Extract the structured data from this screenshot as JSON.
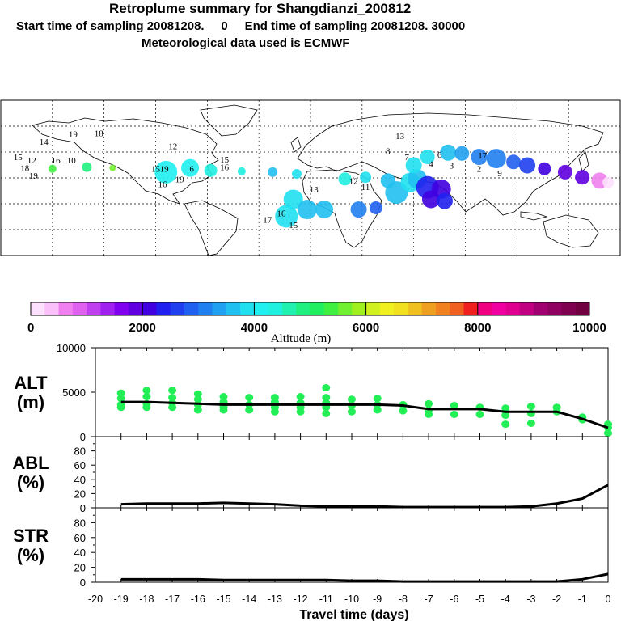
{
  "header": {
    "title": "Retroplume summary for Shangdianzi_200812",
    "sampling": "Start time of sampling 20081208.     0     End time of sampling 20081208. 30000",
    "met": "Meteorological data used is ECMWF"
  },
  "colors": {
    "scale": [
      "#fde0fd",
      "#f9c0f9",
      "#f080f0",
      "#e060f0",
      "#c040f0",
      "#a020f0",
      "#8000f0",
      "#6000e0",
      "#4000e0",
      "#2020f0",
      "#2040f0",
      "#2060f0",
      "#2080f0",
      "#20a0f0",
      "#20c0f0",
      "#20e0f0",
      "#20f0f0",
      "#20f0e0",
      "#20f0b0",
      "#20f080",
      "#20f060",
      "#40f040",
      "#70f030",
      "#a0f020",
      "#d0f020",
      "#f0f020",
      "#f0e020",
      "#f0c020",
      "#f0a020",
      "#f08020",
      "#f06020",
      "#f02020",
      "#f00080",
      "#f000a0",
      "#e00090",
      "#c00080",
      "#a00070",
      "#900060",
      "#800050",
      "#700040"
    ],
    "alt_dots": "#22ee55",
    "line": "#000000"
  },
  "map": {
    "labels": [
      {
        "t": "19",
        "lon": -138,
        "lat": 67
      },
      {
        "t": "18",
        "lon": -123,
        "lat": 68
      },
      {
        "t": "14",
        "lon": -155,
        "lat": 58
      },
      {
        "t": "12",
        "lon": -80,
        "lat": 53
      },
      {
        "t": "8",
        "lon": 45,
        "lat": 47
      },
      {
        "t": "13",
        "lon": 52,
        "lat": 65
      },
      {
        "t": "17",
        "lon": 100,
        "lat": 42
      },
      {
        "t": "15",
        "lon": -170,
        "lat": 40
      },
      {
        "t": "12",
        "lon": -162,
        "lat": 36
      },
      {
        "t": "16",
        "lon": -148,
        "lat": 36
      },
      {
        "t": "10",
        "lon": -139,
        "lat": 36
      },
      {
        "t": "18",
        "lon": -166,
        "lat": 27
      },
      {
        "t": "19",
        "lon": -161,
        "lat": 18
      },
      {
        "t": "15",
        "lon": -50,
        "lat": 37
      },
      {
        "t": "16",
        "lon": -50,
        "lat": 28
      },
      {
        "t": "15",
        "lon": -90,
        "lat": 26
      },
      {
        "t": "19",
        "lon": -85,
        "lat": 26
      },
      {
        "t": "6",
        "lon": -69,
        "lat": 26
      },
      {
        "t": "16",
        "lon": -86,
        "lat": 8
      },
      {
        "t": "19",
        "lon": -76,
        "lat": 14
      },
      {
        "t": "7",
        "lon": 56,
        "lat": 40
      },
      {
        "t": "6",
        "lon": 75,
        "lat": 43
      },
      {
        "t": "4",
        "lon": 70,
        "lat": 32
      },
      {
        "t": "3",
        "lon": 82,
        "lat": 30
      },
      {
        "t": "2",
        "lon": 98,
        "lat": 26
      },
      {
        "t": "9",
        "lon": 110,
        "lat": 21
      },
      {
        "t": "12",
        "lon": 25,
        "lat": 12
      },
      {
        "t": "11",
        "lon": 32,
        "lat": 5
      },
      {
        "t": "13",
        "lon": 2,
        "lat": 2
      },
      {
        "t": "16",
        "lon": -17,
        "lat": -26
      },
      {
        "t": "17",
        "lon": -25,
        "lat": -34
      },
      {
        "t": "15",
        "lon": -10,
        "lat": -40
      }
    ],
    "puffs": [
      {
        "lon": -84,
        "lat": 22,
        "r": 14,
        "c": "#20f0f0"
      },
      {
        "lon": -70,
        "lat": 27,
        "r": 11,
        "c": "#20f0f0"
      },
      {
        "lon": -58,
        "lat": 24,
        "r": 8,
        "c": "#20f0e0"
      },
      {
        "lon": -10,
        "lat": -10,
        "r": 12,
        "c": "#20e0f0"
      },
      {
        "lon": -14,
        "lat": -30,
        "r": 14,
        "c": "#20e0f0"
      },
      {
        "lon": -2,
        "lat": -22,
        "r": 12,
        "c": "#20c0f0"
      },
      {
        "lon": 8,
        "lat": -22,
        "r": 11,
        "c": "#20c0f0"
      },
      {
        "lon": 28,
        "lat": -22,
        "r": 10,
        "c": "#2080f0"
      },
      {
        "lon": 38,
        "lat": -20,
        "r": 8,
        "c": "#2060f0"
      },
      {
        "lon": 50,
        "lat": -2,
        "r": 14,
        "c": "#20c0f0"
      },
      {
        "lon": 58,
        "lat": 10,
        "r": 12,
        "c": "#20e0f0"
      },
      {
        "lon": 62,
        "lat": 14,
        "r": 12,
        "c": "#20c0f0"
      },
      {
        "lon": 68,
        "lat": 4,
        "r": 14,
        "c": "#2020f0"
      },
      {
        "lon": 76,
        "lat": 2,
        "r": 12,
        "c": "#4000e0"
      },
      {
        "lon": 70,
        "lat": -10,
        "r": 11,
        "c": "#4000e0"
      },
      {
        "lon": 78,
        "lat": -12,
        "r": 10,
        "c": "#2020f0"
      },
      {
        "lon": 60,
        "lat": 30,
        "r": 10,
        "c": "#20e0f0"
      },
      {
        "lon": 68,
        "lat": 40,
        "r": 9,
        "c": "#20e0f0"
      },
      {
        "lon": 80,
        "lat": 45,
        "r": 10,
        "c": "#20c0f0"
      },
      {
        "lon": 88,
        "lat": 44,
        "r": 9,
        "c": "#20a0f0"
      },
      {
        "lon": 98,
        "lat": 40,
        "r": 10,
        "c": "#2080f0"
      },
      {
        "lon": 108,
        "lat": 38,
        "r": 12,
        "c": "#2080f0"
      },
      {
        "lon": 118,
        "lat": 34,
        "r": 9,
        "c": "#2060f0"
      },
      {
        "lon": 126,
        "lat": 30,
        "r": 10,
        "c": "#2040f0"
      },
      {
        "lon": 136,
        "lat": 26,
        "r": 8,
        "c": "#4000e0"
      },
      {
        "lon": 148,
        "lat": 22,
        "r": 9,
        "c": "#6000e0"
      },
      {
        "lon": 158,
        "lat": 16,
        "r": 9,
        "c": "#6000e0"
      },
      {
        "lon": 168,
        "lat": 12,
        "r": 10,
        "c": "#f080f0"
      },
      {
        "lon": 173,
        "lat": 10,
        "r": 7,
        "c": "#fde0fd"
      },
      {
        "lon": -40,
        "lat": 23,
        "r": 5,
        "c": "#20f0e0"
      },
      {
        "lon": -22,
        "lat": 22,
        "r": 6,
        "c": "#20c0f0"
      },
      {
        "lon": -8,
        "lat": 20,
        "r": 6,
        "c": "#20e0f0"
      },
      {
        "lon": 20,
        "lat": 14,
        "r": 8,
        "c": "#20f0e0"
      },
      {
        "lon": 32,
        "lat": 16,
        "r": 7,
        "c": "#20e0f0"
      },
      {
        "lon": 45,
        "lat": 12,
        "r": 9,
        "c": "#20c0f0"
      },
      {
        "lon": -130,
        "lat": 28,
        "r": 6,
        "c": "#20f080"
      },
      {
        "lon": -150,
        "lat": 26,
        "r": 5,
        "c": "#40f040"
      },
      {
        "lon": -115,
        "lat": 27,
        "r": 4,
        "c": "#70f030"
      }
    ]
  },
  "colorbar": {
    "ticks": [
      "0",
      "2000",
      "4000",
      "6000",
      "8000",
      "10000"
    ],
    "label": "Altitude  (m)"
  },
  "chart_data": [
    {
      "type": "scatter",
      "name": "ALT",
      "ylabel": "ALT\n(m)",
      "ylim": [
        0,
        10000
      ],
      "yticks": [
        "0",
        "5000",
        "10000"
      ],
      "x": [
        -19,
        -18,
        -17,
        -16,
        -15,
        -14,
        -13,
        -12,
        -11,
        -10,
        -9,
        -8,
        -7,
        -6,
        -5,
        -4,
        -3,
        -2,
        -1,
        0
      ],
      "line": [
        3900,
        3900,
        3800,
        3700,
        3600,
        3600,
        3600,
        3600,
        3600,
        3600,
        3600,
        3500,
        3100,
        3100,
        3100,
        2800,
        2800,
        2800,
        2000,
        1000
      ],
      "points": [
        [
          -19,
          4900
        ],
        [
          -19,
          4300
        ],
        [
          -19,
          3600
        ],
        [
          -19,
          3300
        ],
        [
          -18,
          5200
        ],
        [
          -18,
          4500
        ],
        [
          -18,
          3700
        ],
        [
          -18,
          3300
        ],
        [
          -17,
          5200
        ],
        [
          -17,
          4400
        ],
        [
          -17,
          3800
        ],
        [
          -17,
          3300
        ],
        [
          -16,
          4800
        ],
        [
          -16,
          4200
        ],
        [
          -16,
          3600
        ],
        [
          -16,
          3000
        ],
        [
          -15,
          4500
        ],
        [
          -15,
          3900
        ],
        [
          -15,
          3400
        ],
        [
          -15,
          3000
        ],
        [
          -14,
          4400
        ],
        [
          -14,
          3600
        ],
        [
          -14,
          3000
        ],
        [
          -13,
          4400
        ],
        [
          -13,
          3900
        ],
        [
          -13,
          3300
        ],
        [
          -13,
          2800
        ],
        [
          -12,
          4500
        ],
        [
          -12,
          3800
        ],
        [
          -12,
          3300
        ],
        [
          -12,
          2800
        ],
        [
          -11,
          5500
        ],
        [
          -11,
          4400
        ],
        [
          -11,
          3800
        ],
        [
          -11,
          3300
        ],
        [
          -11,
          2600
        ],
        [
          -10,
          4200
        ],
        [
          -10,
          3500
        ],
        [
          -10,
          2800
        ],
        [
          -9,
          4300
        ],
        [
          -9,
          3600
        ],
        [
          -9,
          3000
        ],
        [
          -8,
          3600
        ],
        [
          -8,
          2900
        ],
        [
          -7,
          3700
        ],
        [
          -7,
          3000
        ],
        [
          -7,
          2500
        ],
        [
          -6,
          3500
        ],
        [
          -6,
          2500
        ],
        [
          -5,
          3300
        ],
        [
          -5,
          2500
        ],
        [
          -4,
          3200
        ],
        [
          -4,
          2400
        ],
        [
          -4,
          1400
        ],
        [
          -3,
          3400
        ],
        [
          -3,
          2600
        ],
        [
          -3,
          1500
        ],
        [
          -2,
          3300
        ],
        [
          -2,
          2800
        ],
        [
          -1,
          2200
        ],
        [
          -1,
          1900
        ],
        [
          0,
          1400
        ],
        [
          0,
          1000
        ],
        [
          0,
          400
        ]
      ]
    },
    {
      "type": "line",
      "name": "ABL",
      "ylabel": "ABL\n(%)",
      "ylim": [
        0,
        100
      ],
      "yticks": [
        "0",
        "20",
        "40",
        "60",
        "80"
      ],
      "x": [
        -19,
        -18,
        -17,
        -16,
        -15,
        -14,
        -13,
        -12,
        -11,
        -10,
        -9,
        -8,
        -7,
        -6,
        -5,
        -4,
        -3,
        -2,
        -1,
        0
      ],
      "values": [
        5,
        6,
        6,
        6,
        7,
        6,
        5,
        3,
        2,
        2,
        2,
        1,
        1,
        1,
        1,
        1,
        2,
        6,
        13,
        32
      ]
    },
    {
      "type": "line",
      "name": "STR",
      "ylabel": "STR\n(%)",
      "ylim": [
        0,
        100
      ],
      "yticks": [
        "0",
        "20",
        "40",
        "60",
        "80"
      ],
      "x": [
        -19,
        -18,
        -17,
        -16,
        -15,
        -14,
        -13,
        -12,
        -11,
        -10,
        -9,
        -8,
        -7,
        -6,
        -5,
        -4,
        -3,
        -2,
        -1,
        0
      ],
      "values": [
        4,
        4,
        4,
        4,
        3,
        3,
        3,
        3,
        3,
        2,
        2,
        1,
        1,
        1,
        1,
        1,
        1,
        1,
        4,
        11
      ]
    }
  ],
  "xaxis": {
    "ticks": [
      "-20",
      "-19",
      "-18",
      "-17",
      "-16",
      "-15",
      "-14",
      "-13",
      "-12",
      "-11",
      "-10",
      "-9",
      "-8",
      "-7",
      "-6",
      "-5",
      "-4",
      "-3",
      "-2",
      "-1",
      "0"
    ],
    "label": "Travel time (days)"
  }
}
